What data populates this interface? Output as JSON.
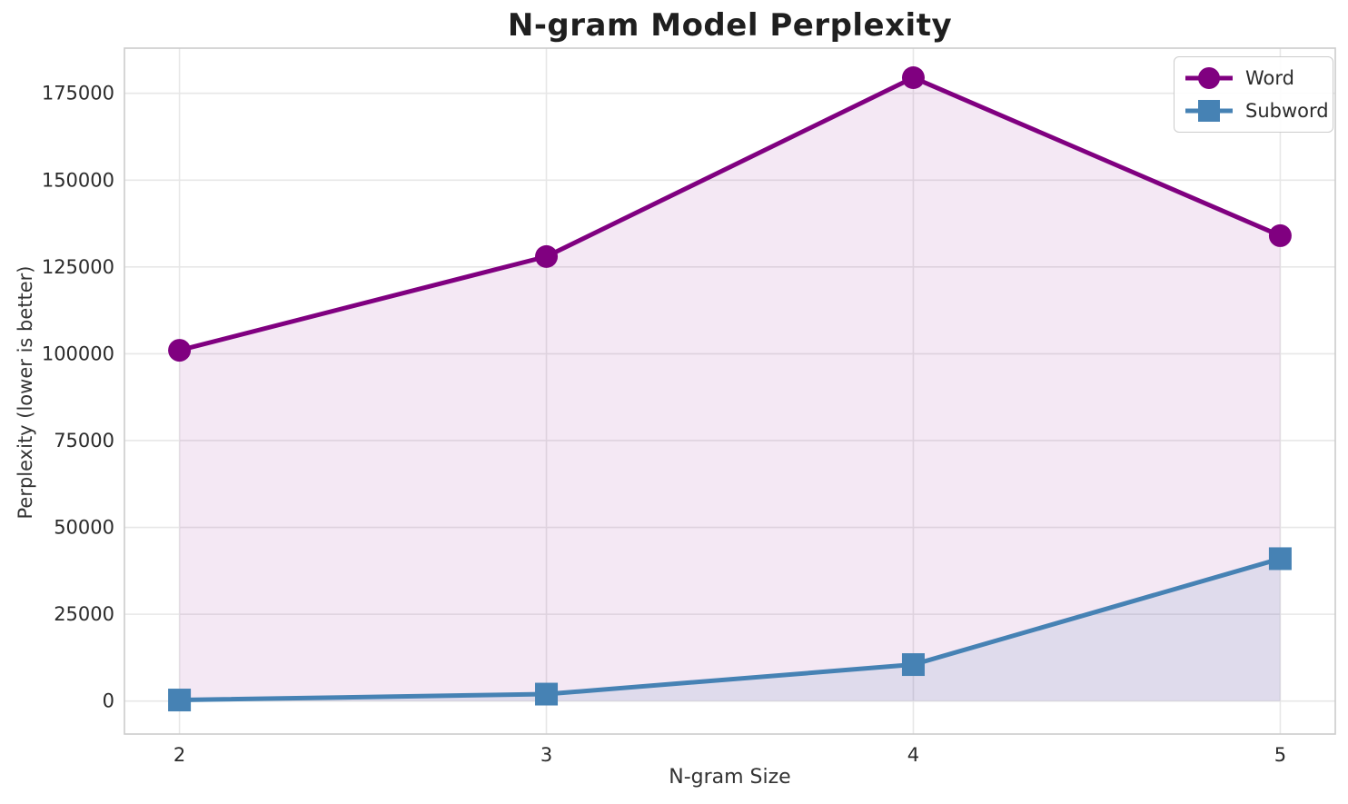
{
  "title": "N-gram Model Perplexity",
  "axes": {
    "xlabel": "N-gram Size",
    "ylabel": "Perplexity (lower is better)"
  },
  "legend": {
    "position": "upper right",
    "items": [
      {
        "label": "Word",
        "marker": "circle",
        "color": "#800080"
      },
      {
        "label": "Subword",
        "marker": "square",
        "color": "#4682B4"
      }
    ]
  },
  "colors": {
    "word_series": "#800080",
    "subword_series": "#4682B4",
    "grid": "#e7e7e7",
    "spine": "#cccccc",
    "tick_text": "#2b2b2b",
    "title_text": "#1f1f1f"
  },
  "chart_data": {
    "type": "line",
    "title": "N-gram Model Perplexity",
    "xlabel": "N-gram Size",
    "ylabel": "Perplexity (lower is better)",
    "x": [
      2,
      3,
      4,
      5
    ],
    "series": [
      {
        "name": "Word",
        "color": "#800080",
        "marker": "circle",
        "values": [
          101000,
          128000,
          179500,
          134000
        ],
        "fill_to_zero": true,
        "fill_alpha": 0.09
      },
      {
        "name": "Subword",
        "color": "#4682B4",
        "marker": "square",
        "values": [
          300,
          2000,
          10500,
          41000
        ],
        "fill_to_zero": true,
        "fill_alpha": 0.12
      }
    ],
    "xticks": [
      2,
      3,
      4,
      5
    ],
    "yticks": [
      0,
      25000,
      50000,
      75000,
      100000,
      125000,
      150000,
      175000
    ],
    "xlim": [
      1.85,
      5.15
    ],
    "ylim": [
      -9500,
      188000
    ],
    "grid": true,
    "legend_position": "upper right"
  }
}
